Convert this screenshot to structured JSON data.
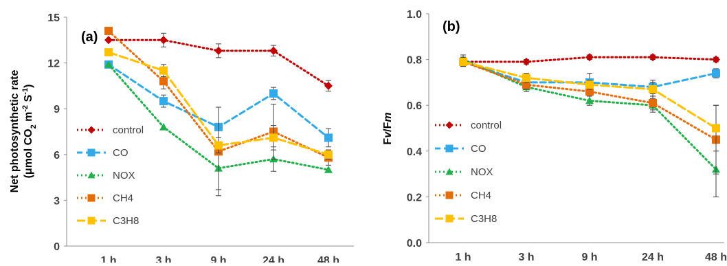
{
  "chart_data": [
    {
      "type": "line",
      "panel_label": "(a)",
      "ylabel_line1": "Net photosynthetic rate",
      "ylabel_line2_parts": [
        "(μmol CO",
        "2",
        " m",
        "-2",
        " S",
        "-1",
        ")"
      ],
      "categories": [
        "1 h",
        "3 h",
        "9 h",
        "24 h",
        "48 h"
      ],
      "ylim": [
        0,
        15
      ],
      "yticks": [
        0,
        3,
        6,
        9,
        12,
        15
      ],
      "legend_position": "left",
      "series": [
        {
          "name": "control",
          "color": "#C00000",
          "marker": "diamond",
          "dash": "2 4",
          "values": [
            13.5,
            13.5,
            12.8,
            12.8,
            10.5
          ],
          "errors": [
            0,
            0.45,
            0.45,
            0.35,
            0.35
          ]
        },
        {
          "name": "CO",
          "color": "#33A9E8",
          "marker": "square",
          "dash": "8 5",
          "values": [
            11.9,
            9.5,
            7.8,
            10.0,
            7.1
          ],
          "errors": [
            0,
            0.4,
            1.3,
            0.4,
            0.6
          ]
        },
        {
          "name": "NOX",
          "color": "#21B04B",
          "marker": "triangle",
          "dash": "2 4",
          "values": [
            11.9,
            7.8,
            5.1,
            5.7,
            5.0
          ],
          "errors": [
            0,
            0,
            1.4,
            0.8,
            0
          ]
        },
        {
          "name": "CH4",
          "color": "#E46C0A",
          "marker": "square",
          "dash": "2 4",
          "values": [
            14.1,
            10.8,
            6.2,
            7.5,
            5.8
          ],
          "errors": [
            0,
            0.5,
            2.9,
            1.8,
            0.5
          ]
        },
        {
          "name": "C3H8",
          "color": "#FFC000",
          "marker": "square",
          "dash": "12 5",
          "values": [
            12.7,
            11.5,
            6.6,
            7.1,
            6.0
          ],
          "errors": [
            0,
            0.4,
            0.5,
            0.8,
            0.3
          ]
        }
      ]
    },
    {
      "type": "line",
      "panel_label": "(b)",
      "ylabel_parts": [
        "F",
        "v",
        "/F",
        "m"
      ],
      "categories": [
        "1 h",
        "3 h",
        "9 h",
        "24 h",
        "48 h"
      ],
      "ylim": [
        0,
        1
      ],
      "yticks": [
        "0.0",
        "0.2",
        "0.4",
        "0.6",
        "0.8",
        "1.0"
      ],
      "legend_position": "left",
      "series": [
        {
          "name": "control",
          "color": "#C00000",
          "marker": "diamond",
          "dash": "2 4",
          "values": [
            0.79,
            0.79,
            0.81,
            0.81,
            0.8
          ],
          "errors": [
            0.01,
            0.01,
            0.01,
            0.01,
            0.01
          ]
        },
        {
          "name": "CO",
          "color": "#33A9E8",
          "marker": "square",
          "dash": "8 5",
          "values": [
            0.79,
            0.7,
            0.7,
            0.68,
            0.74
          ],
          "errors": [
            0.02,
            0.02,
            0.04,
            0.03,
            0.02
          ]
        },
        {
          "name": "NOX",
          "color": "#21B04B",
          "marker": "triangle",
          "dash": "2 4",
          "values": [
            0.8,
            0.68,
            0.62,
            0.6,
            0.32
          ],
          "errors": [
            0.02,
            0.02,
            0.02,
            0.03,
            0.12
          ]
        },
        {
          "name": "CH4",
          "color": "#E46C0A",
          "marker": "square",
          "dash": "2 4",
          "values": [
            0.79,
            0.69,
            0.66,
            0.61,
            0.45
          ],
          "errors": [
            0.02,
            0.02,
            0.02,
            0.03,
            0.15
          ]
        },
        {
          "name": "C3H8",
          "color": "#FFC000",
          "marker": "square",
          "dash": "12 5",
          "values": [
            0.79,
            0.72,
            0.69,
            0.67,
            0.5
          ],
          "errors": [
            0.02,
            0.02,
            0.02,
            0.03,
            0.1
          ]
        }
      ]
    }
  ]
}
